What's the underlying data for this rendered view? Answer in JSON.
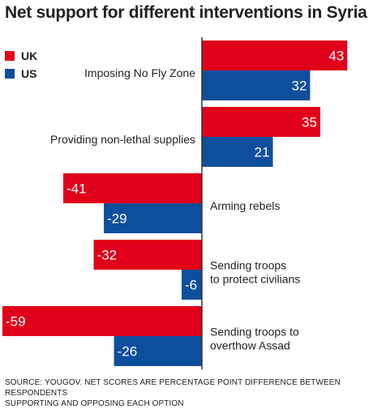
{
  "colors": {
    "uk": "#e1001a",
    "us": "#0d4f9c",
    "axis": "#333333",
    "label_on_bar": "#ffffff"
  },
  "title": "Net support for different interventions in Syria",
  "legend": [
    {
      "name": "UK",
      "color": "#e1001a"
    },
    {
      "name": "US",
      "color": "#0d4f9c"
    }
  ],
  "source_lines": [
    "SOURCE: YOUGOV. NET SCORES ARE PERCENTAGE POINT DIFFERENCE BETWEEN RESPONDENTS",
    "SUPPORTING AND OPPOSING EACH OPTION"
  ],
  "chart_data": {
    "type": "bar",
    "orientation": "horizontal",
    "categories": [
      [
        "Imposing No Fly Zone"
      ],
      [
        "Providing non-lethal supplies"
      ],
      [
        "Arming rebels"
      ],
      [
        "Sending troops",
        "to protect civilians"
      ],
      [
        "Sending troops to",
        "overthow Assad"
      ]
    ],
    "series": [
      {
        "name": "UK",
        "values": [
          43,
          35,
          -41,
          -32,
          -59
        ]
      },
      {
        "name": "US",
        "values": [
          32,
          21,
          -29,
          -6,
          -26
        ]
      }
    ],
    "xlim": [
      -60,
      45
    ],
    "grid": false,
    "legend_position": "top-left"
  }
}
